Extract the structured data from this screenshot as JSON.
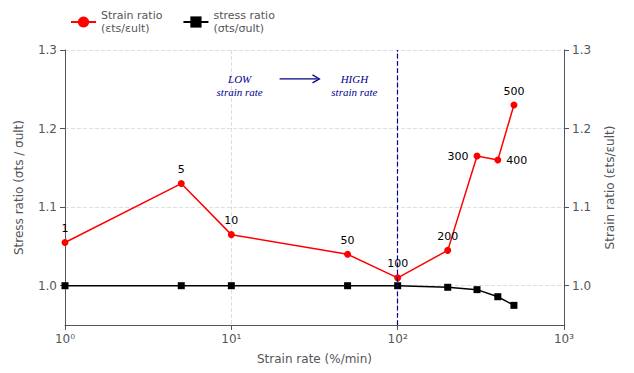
{
  "chart_data": {
    "type": "line",
    "xlabel": "Strain rate (%/min)",
    "ylabel": "Stress ratio (σts / σult)",
    "y2label": "Strain ratio (εts/εult)",
    "x": [
      1,
      5,
      10,
      50,
      100,
      200,
      300,
      400,
      500
    ],
    "series": [
      {
        "name": "Strain ratio\n(εts/εult)",
        "color": "#FF0000",
        "marker": "circle",
        "values": [
          1.055,
          1.13,
          1.065,
          1.04,
          1.01,
          1.045,
          1.165,
          1.16,
          1.23
        ],
        "point_labels": [
          "1",
          "5",
          "10",
          "50",
          "100",
          "200",
          "300",
          "400",
          "500"
        ]
      },
      {
        "name": "stress ratio\n(σts/σult)",
        "color": "#000000",
        "marker": "square",
        "values": [
          1.0,
          1.0,
          1.0,
          1.0,
          1.0,
          0.998,
          0.995,
          0.986,
          0.975
        ]
      }
    ],
    "log": "x",
    "xlim": [
      1,
      1000
    ],
    "xticks": [
      {
        "value": 1,
        "label": "10⁰"
      },
      {
        "value": 10,
        "label": "10¹"
      },
      {
        "value": 100,
        "label": "10²"
      },
      {
        "value": 1000,
        "label": "10³"
      }
    ],
    "ylim": [
      0.95,
      1.3
    ],
    "yticks": [
      {
        "value": 1.0,
        "label": "1.0"
      },
      1.1,
      1.2,
      1.3
    ],
    "y2lim": [
      0.95,
      1.3
    ],
    "y2ticks": [
      {
        "value": 1.0,
        "label": "1.0"
      },
      1.1,
      1.2,
      1.3
    ],
    "grid": true,
    "legend": "upper left",
    "annotations": [
      {
        "type": "text",
        "text": "LOW\nstrain rate",
        "color": "#00008B"
      },
      {
        "type": "text",
        "text": "HIGH\nstrain rate",
        "color": "#00008B"
      },
      {
        "type": "arrow",
        "color": "#00008B"
      },
      {
        "type": "vline",
        "x": 100,
        "color": "#00008B",
        "line_style": "dashed"
      }
    ]
  }
}
